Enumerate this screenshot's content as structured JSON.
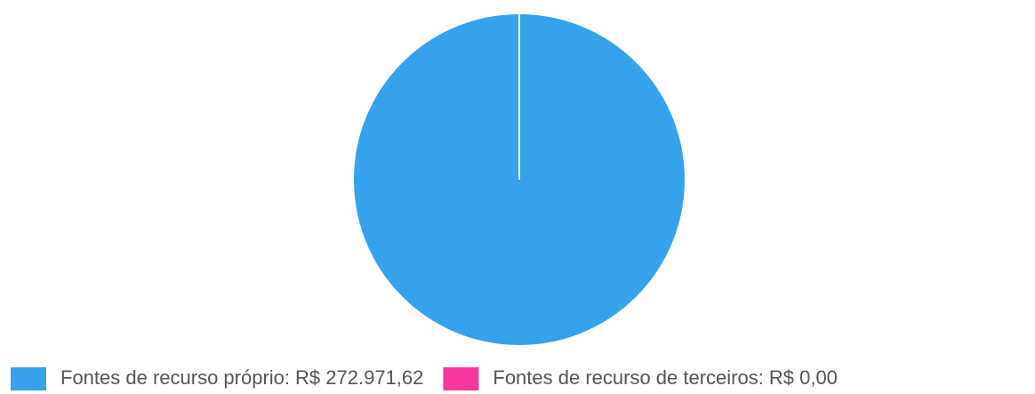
{
  "chart_data": {
    "type": "pie",
    "categories": [
      "Fontes de recurso próprio:",
      "Fontes de recurso de terceiros:"
    ],
    "values": [
      272971.62,
      0
    ],
    "value_labels": [
      "R$ 272.971,62",
      "R$ 0,00"
    ],
    "colors": [
      "#36a2eb",
      "#f5379f"
    ],
    "legend": "bottom"
  }
}
